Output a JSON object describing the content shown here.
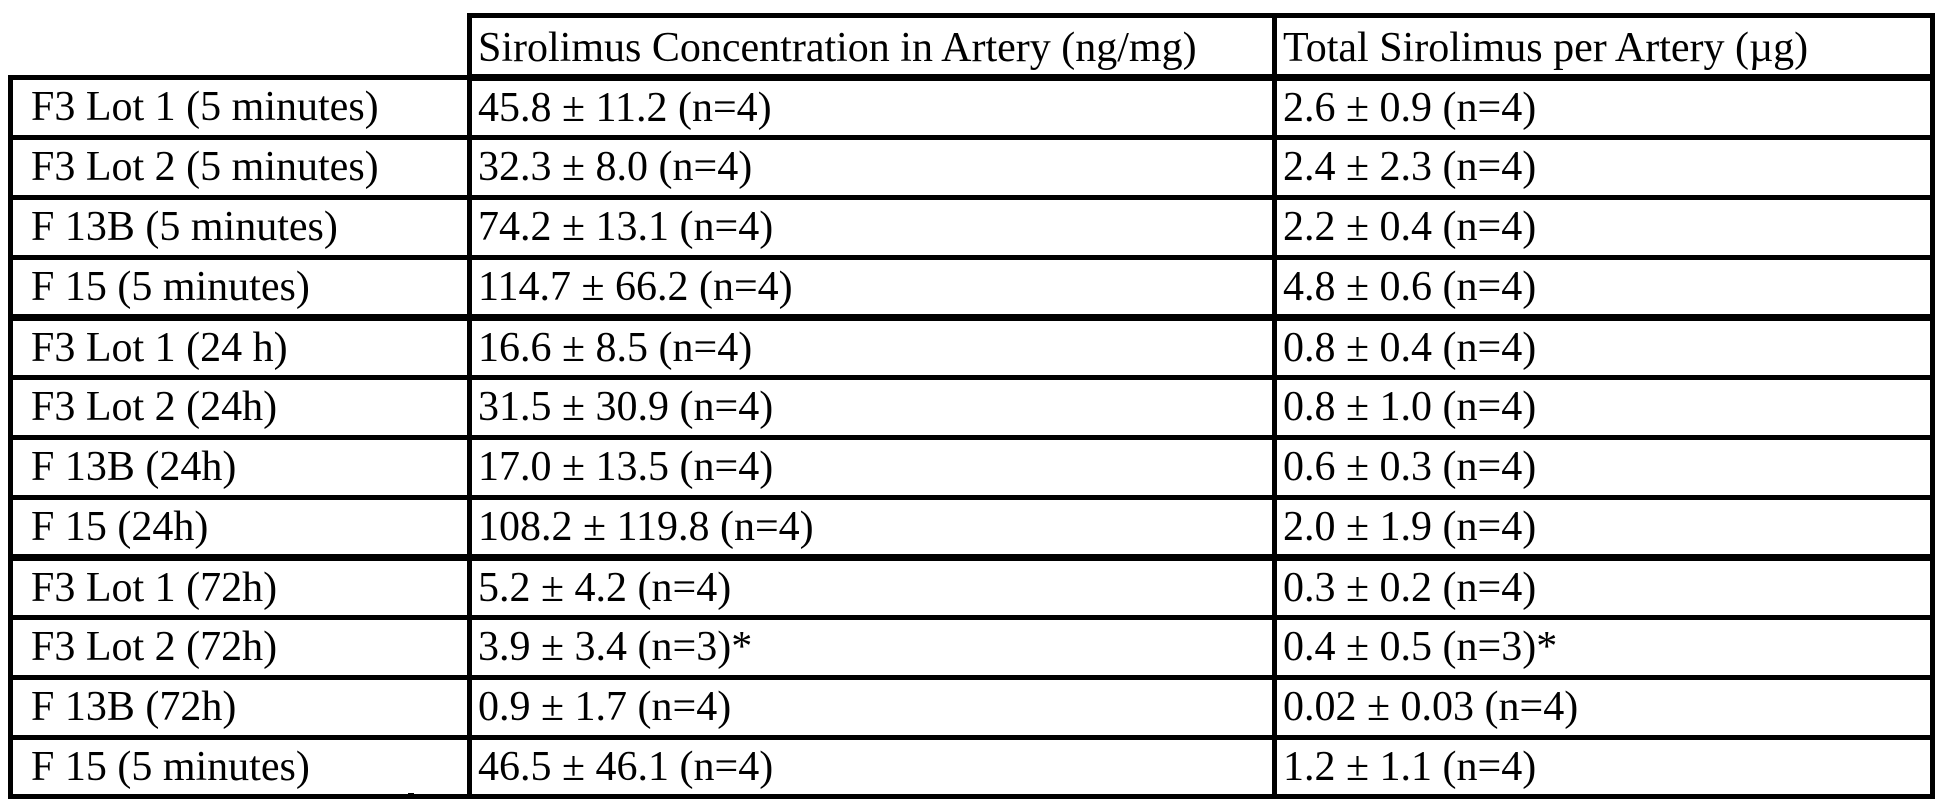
{
  "document": {
    "table": {
      "header": {
        "col1": "",
        "col2": "Sirolimus Concentration in Artery (ng/mg)",
        "col3": "Total Sirolimus per Artery (µg)"
      },
      "rows": [
        {
          "label": "F3 Lot 1 (5 minutes)",
          "concentration": "45.8 ± 11.2 (n=4)",
          "total": "2.6 ± 0.9 (n=4)"
        },
        {
          "label": "F3 Lot 2 (5 minutes)",
          "concentration": "32.3 ± 8.0 (n=4)",
          "total": "2.4 ± 2.3 (n=4)"
        },
        {
          "label": "F 13B (5 minutes)",
          "concentration": "74.2 ± 13.1 (n=4)",
          "total": "2.2 ± 0.4 (n=4)"
        },
        {
          "label": "F 15 (5 minutes)",
          "concentration": "114.7 ± 66.2 (n=4)",
          "total": "4.8 ± 0.6 (n=4)"
        },
        {
          "label": "F3 Lot 1 (24 h)",
          "concentration": "16.6 ± 8.5 (n=4)",
          "total": "0.8 ± 0.4 (n=4)"
        },
        {
          "label": "F3 Lot 2 (24h)",
          "concentration": "31.5 ± 30.9 (n=4)",
          "total": "0.8 ± 1.0 (n=4)"
        },
        {
          "label": "F 13B (24h)",
          "concentration": "17.0 ± 13.5 (n=4)",
          "total": "0.6 ± 0.3 (n=4)"
        },
        {
          "label": "F 15 (24h)",
          "concentration": "108.2 ± 119.8 (n=4)",
          "total": "2.0 ± 1.9 (n=4)"
        },
        {
          "label": "F3 Lot 1 (72h)",
          "concentration": "5.2 ± 4.2 (n=4)",
          "total": "0.3 ± 0.2 (n=4)"
        },
        {
          "label": "F3 Lot 2 (72h)",
          "concentration": "3.9 ± 3.4 (n=3)*",
          "total": "0.4 ± 0.5 (n=3)*"
        },
        {
          "label": "F 13B (72h)",
          "concentration": "0.9 ± 1.7 (n=4)",
          "total": "0.02 ± 0.03 (n=4)"
        },
        {
          "label": "F 15 (5 minutes)",
          "concentration": "46.5 ± 46.1 (n=4)",
          "total": "1.2 ± 1.1 (n=4)"
        }
      ],
      "colors": {
        "border": "#000000",
        "background": "#ffffff",
        "text": "#000000"
      }
    }
  }
}
